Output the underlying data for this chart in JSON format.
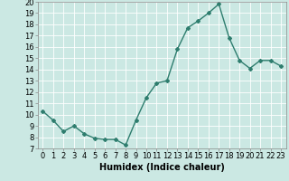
{
  "x": [
    0,
    1,
    2,
    3,
    4,
    5,
    6,
    7,
    8,
    9,
    10,
    11,
    12,
    13,
    14,
    15,
    16,
    17,
    18,
    19,
    20,
    21,
    22,
    23
  ],
  "y": [
    10.3,
    9.5,
    8.5,
    9.0,
    8.3,
    7.9,
    7.8,
    7.8,
    7.3,
    9.5,
    11.5,
    12.8,
    13.0,
    15.8,
    17.7,
    18.3,
    19.0,
    19.8,
    16.8,
    14.8,
    14.1,
    14.8,
    14.8,
    14.3
  ],
  "xlabel": "Humidex (Indice chaleur)",
  "ylabel": "",
  "xlim": [
    -0.5,
    23.5
  ],
  "ylim": [
    7,
    20
  ],
  "yticks": [
    7,
    8,
    9,
    10,
    11,
    12,
    13,
    14,
    15,
    16,
    17,
    18,
    19,
    20
  ],
  "xticks": [
    0,
    1,
    2,
    3,
    4,
    5,
    6,
    7,
    8,
    9,
    10,
    11,
    12,
    13,
    14,
    15,
    16,
    17,
    18,
    19,
    20,
    21,
    22,
    23
  ],
  "bg_color": "#cbe8e3",
  "line_color": "#2e7d6e",
  "grid_color": "#ffffff",
  "marker": "D",
  "marker_size": 2.0,
  "line_width": 1.0,
  "xlabel_fontsize": 7,
  "tick_fontsize": 6
}
